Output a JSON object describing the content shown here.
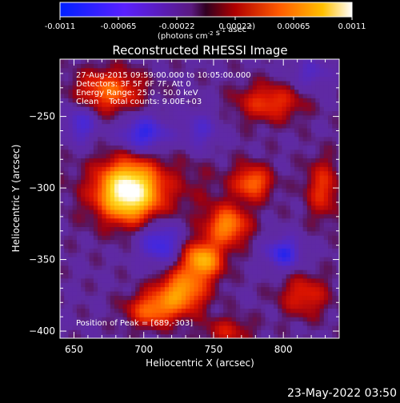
{
  "chart_data": {
    "type": "heatmap",
    "title": "Reconstructed RHESSI Image",
    "xlabel": "Heliocentric X (arcsec)",
    "ylabel": "Heliocentric Y (arcsec)",
    "xlim": [
      640,
      840
    ],
    "ylim": [
      -405,
      -210
    ],
    "x_ticks": [
      650,
      700,
      750,
      800
    ],
    "y_ticks": [
      -250,
      -300,
      -350,
      -400
    ],
    "colorbar": {
      "min": -0.0011,
      "max": 0.0011,
      "ticks": [
        "-0.0011",
        "-0.00065",
        "-0.00022",
        "0.00022",
        "0.00065",
        "0.0011"
      ],
      "label": "(photons cm<sup>-2</sup> s<sup>-1</sup> asec<sup>-2</sup>)"
    },
    "info_lines": [
      "27-Aug-2015 09:59:00.000 to 10:05:00.000",
      "Detectors: 3F 5F 6F 7F, Att 0",
      "Energy Range: 25.0 - 50.0 keV",
      "Clean    Total counts: 9.00E+03"
    ],
    "peak_label": "Position of Peak = [689,-303]",
    "peak": {
      "x": 689,
      "y": -303
    },
    "sources": [
      {
        "x": 689,
        "y": -302,
        "sx": 14,
        "sy": 13,
        "a": 1.0
      },
      {
        "x": 742,
        "y": -350,
        "sx": 10,
        "sy": 9,
        "a": 0.62
      },
      {
        "x": 727,
        "y": -372,
        "sx": 12,
        "sy": 10,
        "a": 0.55
      },
      {
        "x": 760,
        "y": -326,
        "sx": 10,
        "sy": 9,
        "a": 0.5
      },
      {
        "x": 778,
        "y": -296,
        "sx": 9,
        "sy": 8,
        "a": 0.42
      },
      {
        "x": 706,
        "y": -385,
        "sx": 12,
        "sy": 8,
        "a": 0.42
      },
      {
        "x": 675,
        "y": -232,
        "sx": 16,
        "sy": 10,
        "a": 0.42
      },
      {
        "x": 790,
        "y": -240,
        "sx": 16,
        "sy": 9,
        "a": 0.32
      },
      {
        "x": 828,
        "y": -300,
        "sx": 8,
        "sy": 14,
        "a": 0.3
      },
      {
        "x": 815,
        "y": -375,
        "sx": 12,
        "sy": 10,
        "a": 0.28
      },
      {
        "x": 760,
        "y": -400,
        "sx": 12,
        "sy": 7,
        "a": 0.22
      },
      {
        "x": 705,
        "y": -300,
        "sx": 40,
        "sy": 20,
        "a": 0.12
      }
    ],
    "negatives": [
      {
        "x": 700,
        "y": -262,
        "sx": 12,
        "sy": 9,
        "a": 0.38
      },
      {
        "x": 712,
        "y": -338,
        "sx": 11,
        "sy": 11,
        "a": 0.35
      },
      {
        "x": 800,
        "y": -345,
        "sx": 9,
        "sy": 8,
        "a": 0.36
      },
      {
        "x": 655,
        "y": -255,
        "sx": 8,
        "sy": 10,
        "a": 0.28
      },
      {
        "x": 740,
        "y": -260,
        "sx": 10,
        "sy": 10,
        "a": 0.22
      },
      {
        "x": 820,
        "y": -220,
        "sx": 10,
        "sy": 8,
        "a": 0.2
      }
    ]
  },
  "footer": {
    "timestamp": "23-May-2022 03:50"
  }
}
